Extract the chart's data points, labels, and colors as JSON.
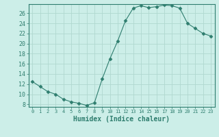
{
  "x": [
    0,
    1,
    2,
    3,
    4,
    5,
    6,
    7,
    8,
    9,
    10,
    11,
    12,
    13,
    14,
    15,
    16,
    17,
    18,
    19,
    20,
    21,
    22,
    23
  ],
  "y": [
    12.5,
    11.5,
    10.5,
    10.0,
    9.0,
    8.5,
    8.2,
    7.8,
    8.3,
    13.0,
    17.0,
    20.5,
    24.5,
    27.0,
    27.5,
    27.1,
    27.3,
    27.6,
    27.5,
    27.0,
    24.0,
    23.0,
    22.0,
    21.5
  ],
  "line_color": "#2e7d6e",
  "marker": "D",
  "marker_size": 2.5,
  "bg_color": "#cceee8",
  "grid_color": "#b0d8d0",
  "xlabel": "Humidex (Indice chaleur)",
  "ylabel_ticks": [
    8,
    10,
    12,
    14,
    16,
    18,
    20,
    22,
    24,
    26
  ],
  "ylim": [
    7.5,
    27.8
  ],
  "xlim": [
    -0.5,
    23.5
  ],
  "xtick_labels": [
    "0",
    "1",
    "2",
    "3",
    "4",
    "5",
    "6",
    "7",
    "8",
    "9",
    "1011",
    "1213",
    "1415",
    "1617",
    "1819",
    "2021",
    "2223"
  ],
  "tick_color": "#2e7d6e",
  "label_fontsize": 6,
  "axis_fontsize": 7
}
